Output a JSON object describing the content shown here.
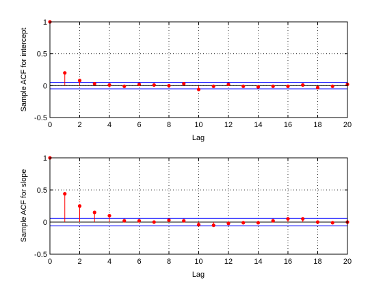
{
  "chart_data": [
    {
      "type": "stem",
      "xlabel": "Lag",
      "ylabel": "Sample ACF for intercept",
      "xlim": [
        0,
        20
      ],
      "ylim": [
        -0.5,
        1
      ],
      "xticks": [
        0,
        2,
        4,
        6,
        8,
        10,
        12,
        14,
        16,
        18,
        20
      ],
      "yticks": [
        -0.5,
        0,
        0.5,
        1
      ],
      "ytick_labels": [
        "-0.5",
        "0",
        "0.5",
        "1"
      ],
      "grid": true,
      "confidence_bounds": [
        -0.05,
        0.05
      ],
      "x": [
        0,
        1,
        2,
        3,
        4,
        5,
        6,
        7,
        8,
        9,
        10,
        11,
        12,
        13,
        14,
        15,
        16,
        17,
        18,
        19,
        20
      ],
      "values": [
        1.0,
        0.2,
        0.08,
        0.03,
        0.01,
        -0.01,
        0.02,
        0.01,
        0.0,
        0.03,
        -0.06,
        -0.01,
        0.02,
        -0.01,
        -0.02,
        -0.01,
        -0.01,
        0.01,
        -0.03,
        -0.01,
        0.02
      ]
    },
    {
      "type": "stem",
      "xlabel": "Lag",
      "ylabel": "Sample ACF for slope",
      "xlim": [
        0,
        20
      ],
      "ylim": [
        -0.5,
        1
      ],
      "xticks": [
        0,
        2,
        4,
        6,
        8,
        10,
        12,
        14,
        16,
        18,
        20
      ],
      "yticks": [
        -0.5,
        0,
        0.5,
        1
      ],
      "ytick_labels": [
        "-0.5",
        "0",
        "0.5",
        "1"
      ],
      "grid": true,
      "confidence_bounds": [
        -0.06,
        0.06
      ],
      "x": [
        0,
        1,
        2,
        3,
        4,
        5,
        6,
        7,
        8,
        9,
        10,
        11,
        12,
        13,
        14,
        15,
        16,
        17,
        18,
        19,
        20
      ],
      "values": [
        1.0,
        0.44,
        0.25,
        0.15,
        0.1,
        0.02,
        0.02,
        0.0,
        0.03,
        0.02,
        -0.04,
        -0.05,
        -0.02,
        -0.01,
        -0.01,
        0.02,
        0.05,
        0.05,
        0.0,
        -0.01,
        0.0
      ]
    }
  ],
  "colors": {
    "stem": "#ff0000",
    "marker": "#ff0000",
    "bounds": "#0000ff",
    "zero_line": "#000000",
    "grid": "#000000",
    "axes": "#000000"
  }
}
